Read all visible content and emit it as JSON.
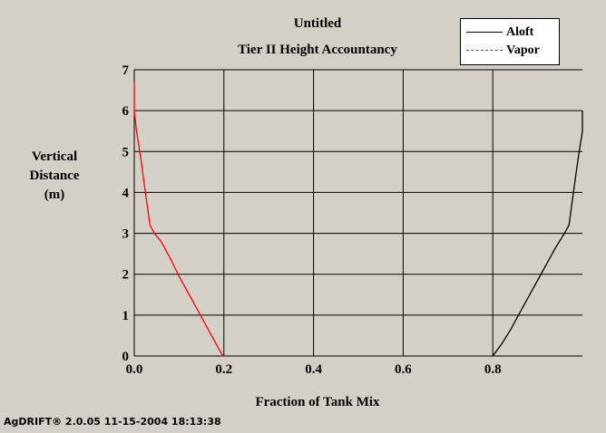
{
  "chart_data": {
    "type": "line",
    "title": "Untitled",
    "subtitle": "Tier II Height Accountancy",
    "xlabel": "Fraction of Tank Mix",
    "ylabel": [
      "Vertical",
      "Distance",
      "(m)"
    ],
    "xlim": [
      0,
      1
    ],
    "ylim": [
      0,
      7
    ],
    "x_ticks": [
      "0.0",
      "0.2",
      "0.4",
      "0.6",
      "0.8"
    ],
    "y_ticks": [
      "0",
      "1",
      "2",
      "3",
      "4",
      "5",
      "6",
      "7"
    ],
    "grid": true,
    "legend_position": "top-right",
    "series": [
      {
        "name": "Aloft",
        "color": "#000000",
        "points": [
          [
            0.8,
            0.0
          ],
          [
            0.82,
            0.3
          ],
          [
            0.84,
            0.65
          ],
          [
            0.86,
            1.05
          ],
          [
            0.88,
            1.45
          ],
          [
            0.9,
            1.85
          ],
          [
            0.92,
            2.25
          ],
          [
            0.94,
            2.65
          ],
          [
            0.96,
            3.0
          ],
          [
            0.97,
            3.2
          ],
          [
            0.98,
            4.0
          ],
          [
            0.99,
            4.8
          ],
          [
            1.0,
            5.5
          ],
          [
            1.0,
            6.0
          ]
        ]
      },
      {
        "name": "Vapor",
        "color": "#ff0000",
        "points": [
          [
            0.0,
            6.7
          ],
          [
            0.0,
            6.0
          ],
          [
            0.005,
            5.5
          ],
          [
            0.015,
            4.8
          ],
          [
            0.025,
            4.0
          ],
          [
            0.035,
            3.2
          ],
          [
            0.045,
            3.0
          ],
          [
            0.06,
            2.8
          ],
          [
            0.08,
            2.4
          ],
          [
            0.1,
            1.95
          ],
          [
            0.12,
            1.55
          ],
          [
            0.14,
            1.15
          ],
          [
            0.16,
            0.75
          ],
          [
            0.18,
            0.35
          ],
          [
            0.195,
            0.05
          ],
          [
            0.2,
            0.0
          ]
        ]
      }
    ]
  },
  "footer": "AgDRIFT® 2.0.05 11-15-2004 18:13:38"
}
